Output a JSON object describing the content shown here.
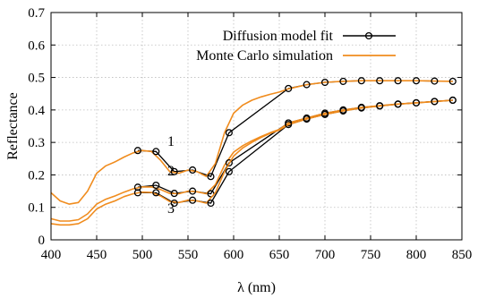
{
  "chart_data": {
    "type": "line",
    "xlabel": "λ (nm)",
    "ylabel": "Reflectance",
    "xlim": [
      400,
      850
    ],
    "ylim": [
      0,
      0.7
    ],
    "xticks": [
      400,
      450,
      500,
      550,
      600,
      650,
      700,
      750,
      800,
      850
    ],
    "yticks": [
      0,
      0.1,
      0.2,
      0.3,
      0.4,
      0.5,
      0.6,
      0.7
    ],
    "grid": true,
    "legend_position": "top-right",
    "legend": [
      {
        "label": "Diffusion model fit",
        "style": "black line with open circles"
      },
      {
        "label": "Monte Carlo simulation",
        "style": "orange line"
      }
    ],
    "curve_labels": [
      {
        "text": "1",
        "series": "curve-1"
      },
      {
        "text": "2",
        "series": "curve-2"
      },
      {
        "text": "3",
        "series": "curve-3"
      }
    ],
    "colors": {
      "monte_carlo": "#f08c1e",
      "diffusion": "#000000"
    },
    "series": [
      {
        "id": "curve-1",
        "monte_carlo": {
          "x": [
            400,
            410,
            420,
            430,
            440,
            450,
            460,
            470,
            480,
            490,
            500,
            510,
            520,
            530,
            540,
            550,
            560,
            570,
            580,
            590,
            600,
            610,
            620,
            630,
            640,
            650,
            660,
            680,
            700,
            720,
            740,
            760,
            780,
            800,
            820,
            840
          ],
          "y": [
            0.145,
            0.12,
            0.11,
            0.115,
            0.15,
            0.205,
            0.228,
            0.24,
            0.255,
            0.268,
            0.275,
            0.272,
            0.245,
            0.21,
            0.205,
            0.215,
            0.21,
            0.195,
            0.235,
            0.33,
            0.39,
            0.415,
            0.43,
            0.44,
            0.448,
            0.455,
            0.465,
            0.478,
            0.485,
            0.488,
            0.49,
            0.49,
            0.49,
            0.49,
            0.489,
            0.488
          ]
        },
        "diffusion": {
          "x": [
            495,
            515,
            535,
            555,
            575,
            595,
            660,
            680,
            700,
            720,
            740,
            760,
            780,
            800,
            820,
            840
          ],
          "y": [
            0.275,
            0.272,
            0.21,
            0.215,
            0.195,
            0.33,
            0.466,
            0.478,
            0.485,
            0.488,
            0.49,
            0.49,
            0.49,
            0.49,
            0.489,
            0.488
          ]
        }
      },
      {
        "id": "curve-2",
        "monte_carlo": {
          "x": [
            400,
            410,
            420,
            430,
            440,
            450,
            460,
            470,
            480,
            490,
            500,
            510,
            520,
            530,
            540,
            550,
            560,
            570,
            580,
            590,
            600,
            610,
            620,
            630,
            640,
            650,
            660,
            680,
            700,
            720,
            740,
            760,
            780,
            800,
            820,
            840
          ],
          "y": [
            0.065,
            0.058,
            0.058,
            0.062,
            0.08,
            0.11,
            0.125,
            0.135,
            0.147,
            0.157,
            0.163,
            0.163,
            0.155,
            0.143,
            0.142,
            0.15,
            0.148,
            0.142,
            0.17,
            0.23,
            0.27,
            0.29,
            0.305,
            0.318,
            0.33,
            0.34,
            0.36,
            0.375,
            0.39,
            0.4,
            0.408,
            0.413,
            0.418,
            0.422,
            0.426,
            0.43
          ]
        },
        "diffusion": {
          "x": [
            495,
            515,
            535,
            555,
            575,
            595,
            660,
            680,
            700,
            720,
            740,
            760,
            780,
            800,
            820,
            840
          ],
          "y": [
            0.162,
            0.168,
            0.143,
            0.15,
            0.142,
            0.237,
            0.36,
            0.375,
            0.39,
            0.4,
            0.408,
            0.413,
            0.418,
            0.422,
            0.426,
            0.43
          ]
        }
      },
      {
        "id": "curve-3",
        "monte_carlo": {
          "x": [
            400,
            410,
            420,
            430,
            440,
            450,
            460,
            470,
            480,
            490,
            500,
            510,
            520,
            530,
            540,
            550,
            560,
            570,
            580,
            590,
            600,
            610,
            620,
            630,
            640,
            650,
            660,
            680,
            700,
            720,
            740,
            760,
            780,
            800,
            820,
            840
          ],
          "y": [
            0.05,
            0.046,
            0.046,
            0.05,
            0.065,
            0.095,
            0.11,
            0.12,
            0.133,
            0.142,
            0.147,
            0.146,
            0.135,
            0.118,
            0.115,
            0.122,
            0.12,
            0.113,
            0.145,
            0.21,
            0.258,
            0.283,
            0.3,
            0.315,
            0.328,
            0.338,
            0.355,
            0.372,
            0.386,
            0.397,
            0.406,
            0.412,
            0.418,
            0.422,
            0.426,
            0.43
          ]
        },
        "diffusion": {
          "x": [
            495,
            515,
            535,
            555,
            575,
            595,
            660,
            680,
            700,
            720,
            740,
            760,
            780,
            800,
            820,
            840
          ],
          "y": [
            0.145,
            0.145,
            0.113,
            0.122,
            0.113,
            0.21,
            0.355,
            0.372,
            0.386,
            0.397,
            0.406,
            0.412,
            0.418,
            0.422,
            0.426,
            0.43
          ]
        }
      }
    ]
  }
}
